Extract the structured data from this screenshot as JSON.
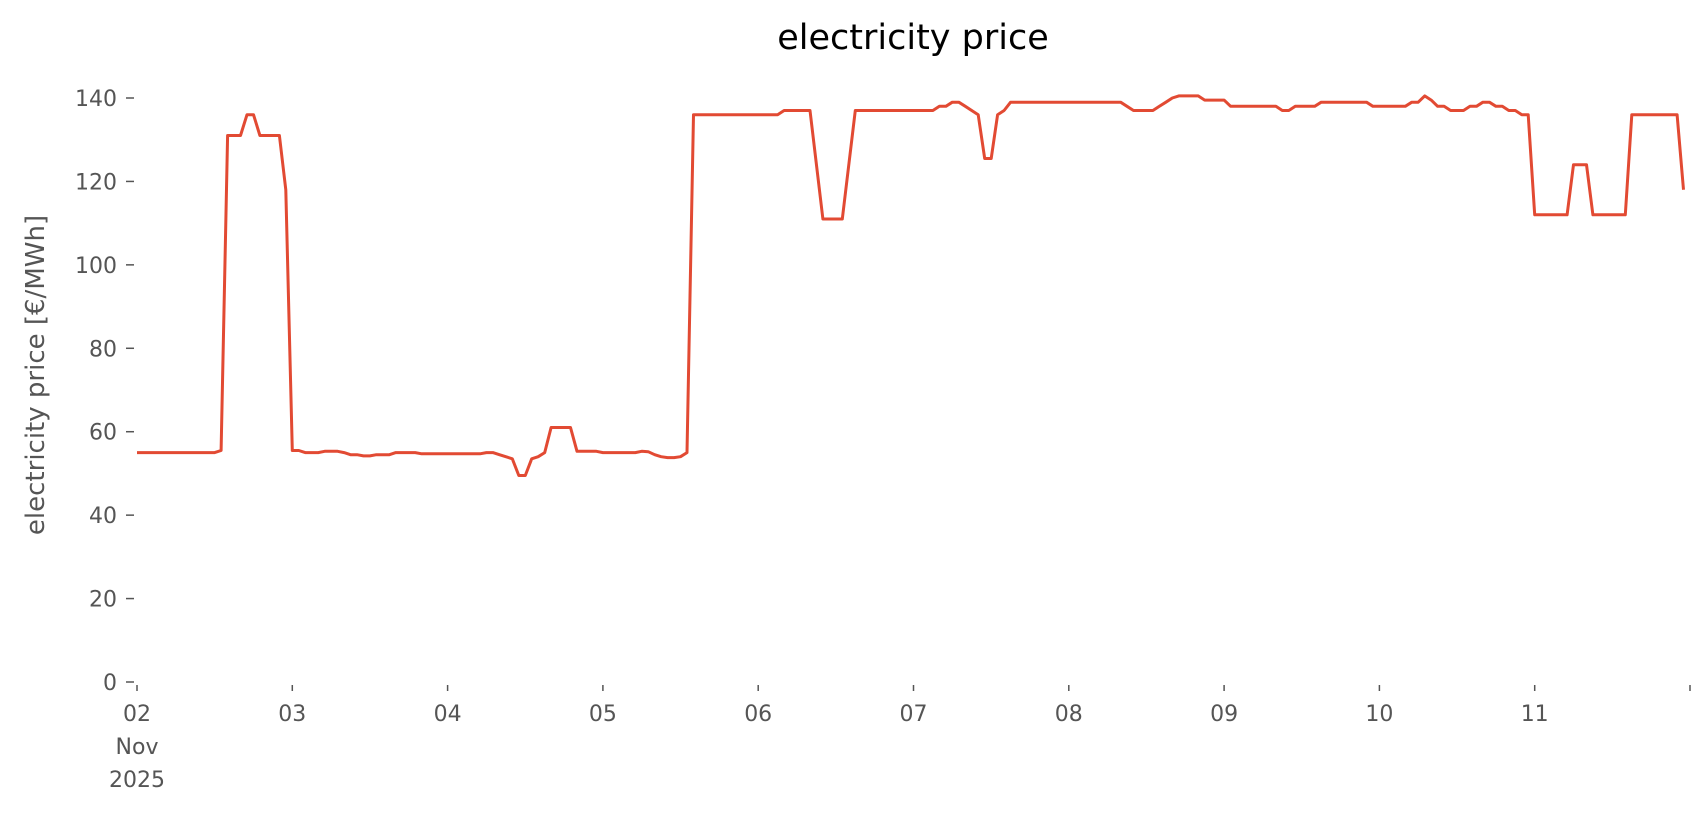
{
  "chart_data": {
    "type": "line",
    "title": "electricity price",
    "xlabel": "",
    "ylabel": "electricity price [€/MWh]",
    "ylim": [
      0,
      140
    ],
    "yticks": [
      0,
      20,
      40,
      60,
      80,
      100,
      120,
      140
    ],
    "xlim": [
      "2025-11-02T00:00",
      "2025-11-11T23:00"
    ],
    "xtick_labels": [
      {
        "date": "2025-11-02",
        "lines": [
          "02",
          "Nov",
          "2025"
        ]
      },
      {
        "date": "2025-11-03",
        "lines": [
          "03"
        ]
      },
      {
        "date": "2025-11-04",
        "lines": [
          "04"
        ]
      },
      {
        "date": "2025-11-05",
        "lines": [
          "05"
        ]
      },
      {
        "date": "2025-11-06",
        "lines": [
          "06"
        ]
      },
      {
        "date": "2025-11-07",
        "lines": [
          "07"
        ]
      },
      {
        "date": "2025-11-08",
        "lines": [
          "08"
        ]
      },
      {
        "date": "2025-11-09",
        "lines": [
          "09"
        ]
      },
      {
        "date": "2025-11-10",
        "lines": [
          "10"
        ]
      },
      {
        "date": "2025-11-11",
        "lines": [
          "11"
        ]
      },
      {
        "date": "2025-11-12",
        "lines": [
          ""
        ]
      }
    ],
    "grid": false,
    "line_color": "#E24A33",
    "series": [
      {
        "points": [
          [
            "2025-11-02T00:00",
            55
          ],
          [
            "2025-11-02T12:00",
            55
          ],
          [
            "2025-11-02T13:00",
            55.5
          ],
          [
            "2025-11-02T14:00",
            131
          ],
          [
            "2025-11-02T16:00",
            131
          ],
          [
            "2025-11-02T17:00",
            136
          ],
          [
            "2025-11-02T18:00",
            136
          ],
          [
            "2025-11-02T19:00",
            131
          ],
          [
            "2025-11-02T22:00",
            131
          ],
          [
            "2025-11-02T23:00",
            118
          ],
          [
            "2025-11-03T00:00",
            55.5
          ],
          [
            "2025-11-03T01:00",
            55.5
          ],
          [
            "2025-11-03T02:00",
            55
          ],
          [
            "2025-11-03T04:00",
            55
          ],
          [
            "2025-11-03T05:00",
            55.3
          ],
          [
            "2025-11-03T07:00",
            55.3
          ],
          [
            "2025-11-03T08:00",
            55
          ],
          [
            "2025-11-03T09:00",
            54.5
          ],
          [
            "2025-11-03T10:00",
            54.5
          ],
          [
            "2025-11-03T11:00",
            54.2
          ],
          [
            "2025-11-03T12:00",
            54.2
          ],
          [
            "2025-11-03T13:00",
            54.5
          ],
          [
            "2025-11-03T15:00",
            54.5
          ],
          [
            "2025-11-03T16:00",
            55
          ],
          [
            "2025-11-03T19:00",
            55
          ],
          [
            "2025-11-03T20:00",
            54.7
          ],
          [
            "2025-11-04T05:00",
            54.7
          ],
          [
            "2025-11-04T06:00",
            55
          ],
          [
            "2025-11-04T07:00",
            55
          ],
          [
            "2025-11-04T08:00",
            54.5
          ],
          [
            "2025-11-04T09:00",
            54
          ],
          [
            "2025-11-04T10:00",
            53.5
          ],
          [
            "2025-11-04T11:00",
            49.5
          ],
          [
            "2025-11-04T12:00",
            49.5
          ],
          [
            "2025-11-04T13:00",
            53.5
          ],
          [
            "2025-11-04T14:00",
            54
          ],
          [
            "2025-11-04T15:00",
            55
          ],
          [
            "2025-11-04T16:00",
            61
          ],
          [
            "2025-11-04T19:00",
            61
          ],
          [
            "2025-11-04T20:00",
            55.3
          ],
          [
            "2025-11-04T23:00",
            55.3
          ],
          [
            "2025-11-05T00:00",
            55
          ],
          [
            "2025-11-05T05:00",
            55
          ],
          [
            "2025-11-05T06:00",
            55.3
          ],
          [
            "2025-11-05T07:00",
            55.2
          ],
          [
            "2025-11-05T08:00",
            54.5
          ],
          [
            "2025-11-05T09:00",
            54
          ],
          [
            "2025-11-05T10:00",
            53.8
          ],
          [
            "2025-11-05T11:00",
            53.8
          ],
          [
            "2025-11-05T12:00",
            54
          ],
          [
            "2025-11-05T13:00",
            55
          ],
          [
            "2025-11-05T14:00",
            136
          ],
          [
            "2025-11-06T03:00",
            136
          ],
          [
            "2025-11-06T04:00",
            137
          ],
          [
            "2025-11-06T08:00",
            137
          ],
          [
            "2025-11-06T10:00",
            111
          ],
          [
            "2025-11-06T13:00",
            111
          ],
          [
            "2025-11-06T15:00",
            137
          ],
          [
            "2025-11-07T03:00",
            137
          ],
          [
            "2025-11-07T04:00",
            138
          ],
          [
            "2025-11-07T05:00",
            138
          ],
          [
            "2025-11-07T06:00",
            139
          ],
          [
            "2025-11-07T07:00",
            139
          ],
          [
            "2025-11-07T08:00",
            138
          ],
          [
            "2025-11-07T09:00",
            137
          ],
          [
            "2025-11-07T10:00",
            136
          ],
          [
            "2025-11-07T11:00",
            125.5
          ],
          [
            "2025-11-07T12:00",
            125.5
          ],
          [
            "2025-11-07T13:00",
            136
          ],
          [
            "2025-11-07T14:00",
            137
          ],
          [
            "2025-11-07T15:00",
            139
          ],
          [
            "2025-11-08T08:00",
            139
          ],
          [
            "2025-11-08T09:00",
            138
          ],
          [
            "2025-11-08T10:00",
            137
          ],
          [
            "2025-11-08T13:00",
            137
          ],
          [
            "2025-11-08T14:00",
            138
          ],
          [
            "2025-11-08T15:00",
            139
          ],
          [
            "2025-11-08T16:00",
            140
          ],
          [
            "2025-11-08T17:00",
            140.5
          ],
          [
            "2025-11-08T20:00",
            140.5
          ],
          [
            "2025-11-08T21:00",
            139.5
          ],
          [
            "2025-11-09T00:00",
            139.5
          ],
          [
            "2025-11-09T01:00",
            138
          ],
          [
            "2025-11-09T08:00",
            138
          ],
          [
            "2025-11-09T09:00",
            137
          ],
          [
            "2025-11-09T10:00",
            137
          ],
          [
            "2025-11-09T11:00",
            138
          ],
          [
            "2025-11-09T14:00",
            138
          ],
          [
            "2025-11-09T15:00",
            139
          ],
          [
            "2025-11-09T22:00",
            139
          ],
          [
            "2025-11-09T23:00",
            138
          ],
          [
            "2025-11-10T04:00",
            138
          ],
          [
            "2025-11-10T05:00",
            139
          ],
          [
            "2025-11-10T06:00",
            139
          ],
          [
            "2025-11-10T07:00",
            140.5
          ],
          [
            "2025-11-10T08:00",
            139.5
          ],
          [
            "2025-11-10T09:00",
            138
          ],
          [
            "2025-11-10T10:00",
            138
          ],
          [
            "2025-11-10T11:00",
            137
          ],
          [
            "2025-11-10T13:00",
            137
          ],
          [
            "2025-11-10T14:00",
            138
          ],
          [
            "2025-11-10T15:00",
            138
          ],
          [
            "2025-11-10T16:00",
            139
          ],
          [
            "2025-11-10T17:00",
            139
          ],
          [
            "2025-11-10T18:00",
            138
          ],
          [
            "2025-11-10T19:00",
            138
          ],
          [
            "2025-11-10T20:00",
            137
          ],
          [
            "2025-11-10T21:00",
            137
          ],
          [
            "2025-11-10T22:00",
            136
          ],
          [
            "2025-11-10T23:00",
            136
          ],
          [
            "2025-11-11T00:00",
            112
          ],
          [
            "2025-11-11T05:00",
            112
          ],
          [
            "2025-11-11T06:00",
            124
          ],
          [
            "2025-11-11T08:00",
            124
          ],
          [
            "2025-11-11T09:00",
            112
          ],
          [
            "2025-11-11T14:00",
            112
          ],
          [
            "2025-11-11T15:00",
            136
          ],
          [
            "2025-11-11T22:00",
            136
          ],
          [
            "2025-11-11T23:00",
            118
          ]
        ]
      }
    ]
  }
}
